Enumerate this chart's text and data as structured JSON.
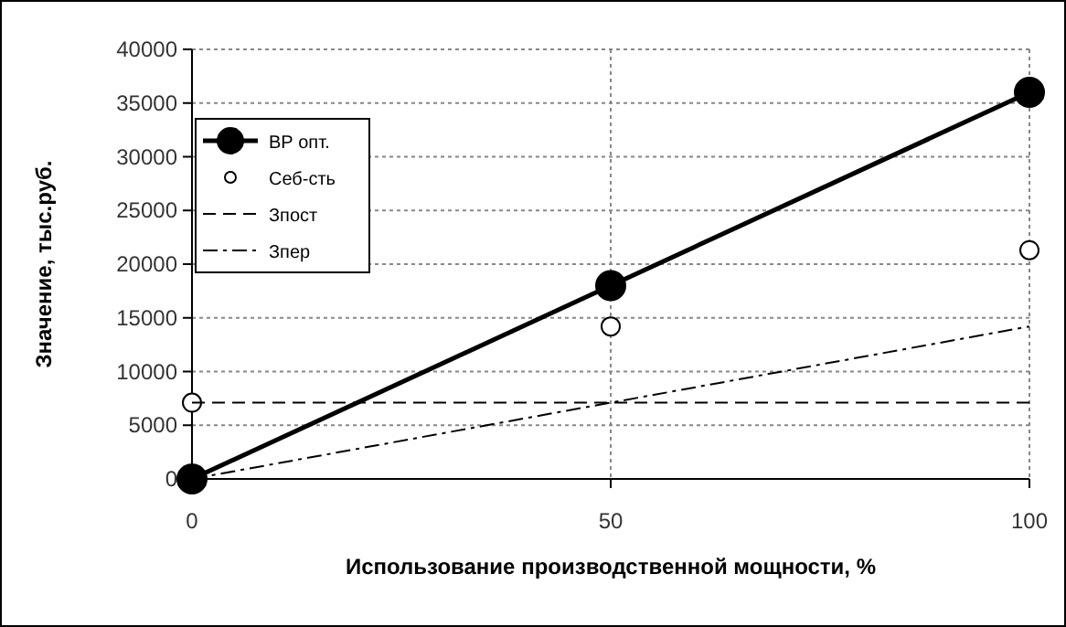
{
  "chart_data": {
    "type": "line",
    "xlabel": "Использование производственной мощности, %",
    "ylabel": "Значение, тыс.руб.",
    "x": [
      0,
      50,
      100
    ],
    "xlim": [
      0,
      100
    ],
    "xticks": [
      0,
      50,
      100
    ],
    "ylim": [
      0,
      40000
    ],
    "yticks": [
      0,
      5000,
      10000,
      15000,
      20000,
      25000,
      30000,
      35000,
      40000
    ],
    "grid": true,
    "legend": "top left",
    "series": [
      {
        "name": "ВР опт.",
        "color": "#000000",
        "values": [
          0,
          18000,
          36000
        ],
        "marker": "circle",
        "line_style": "solid"
      },
      {
        "name": "Себ-сть",
        "type": "scatter",
        "color": "#000000",
        "values": [
          7100,
          14200,
          21300
        ],
        "marker": "circle"
      },
      {
        "name": "Зпост",
        "color": "#000000",
        "values": [
          7100,
          7100,
          7100
        ],
        "marker": "none",
        "line_style": "dashed"
      },
      {
        "name": "Зпер",
        "color": "#000000",
        "values": [
          0,
          7100,
          14200
        ],
        "marker": "none",
        "line_style": "dashdot"
      }
    ]
  }
}
